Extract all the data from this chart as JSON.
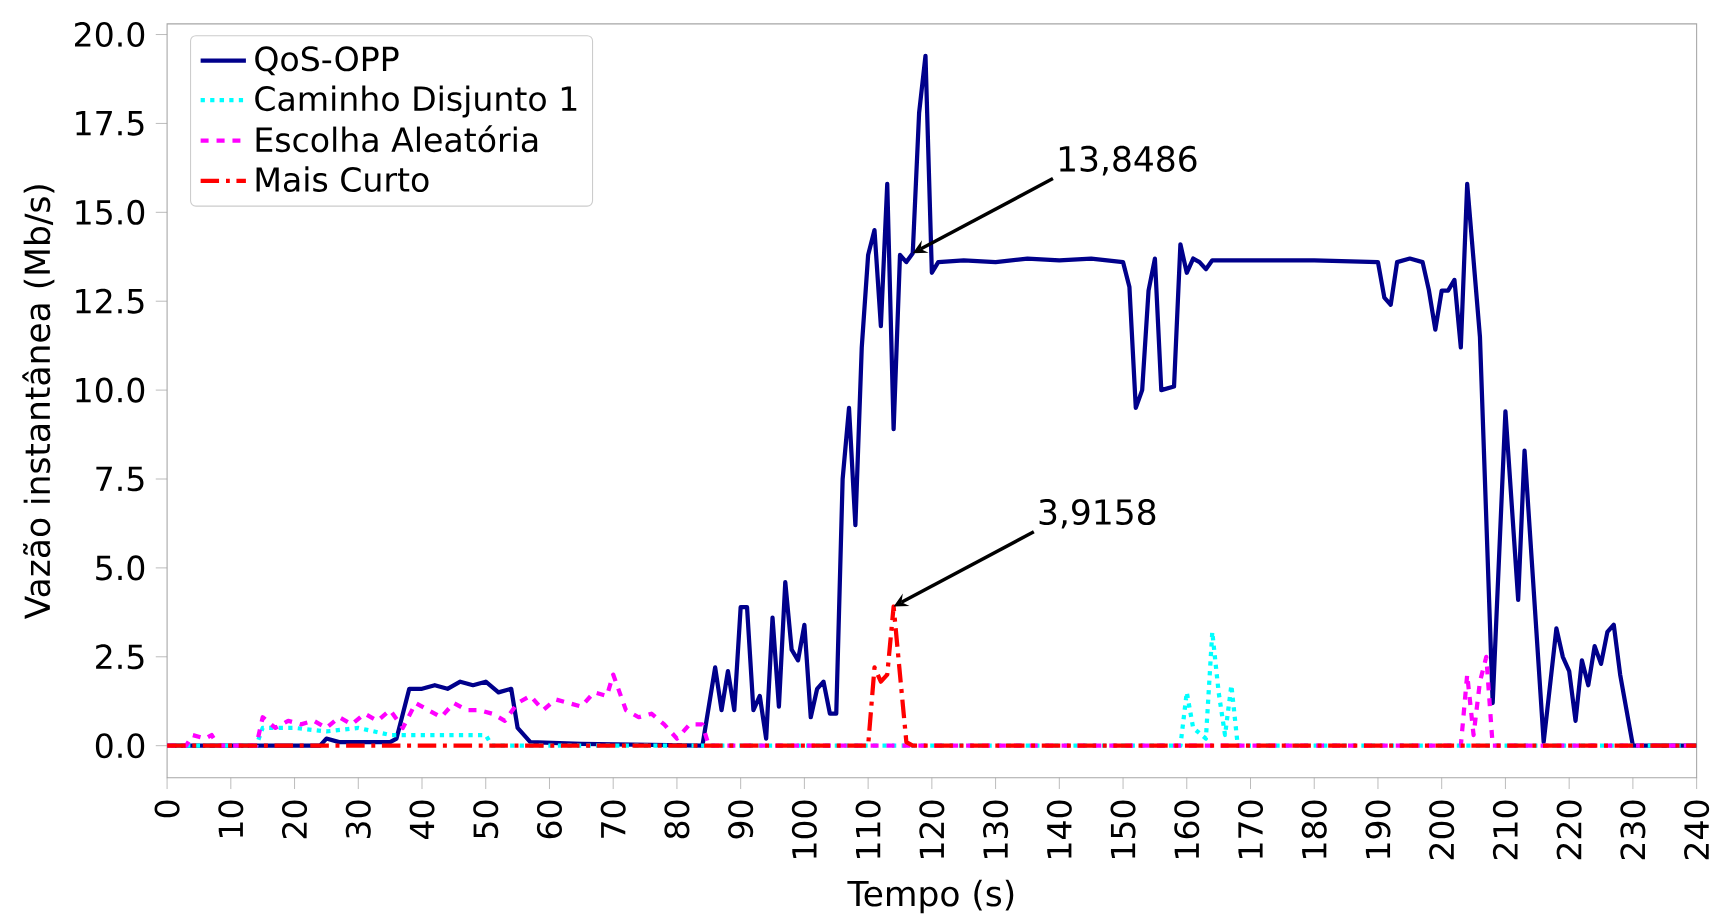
{
  "chart_data": {
    "type": "line",
    "xlabel": "Tempo (s)",
    "ylabel": "Vazão instantânea (Mb/s)",
    "xlim": [
      0,
      240
    ],
    "ylim": [
      -0.9,
      20.3
    ],
    "xticks": [
      0,
      10,
      20,
      30,
      40,
      50,
      60,
      70,
      80,
      90,
      100,
      110,
      120,
      130,
      140,
      150,
      160,
      170,
      180,
      190,
      200,
      210,
      220,
      230,
      240
    ],
    "yticks": [
      {
        "value": 0,
        "label": "0.0"
      },
      {
        "value": 2.5,
        "label": "2.5"
      },
      {
        "value": 5,
        "label": "5.0"
      },
      {
        "value": 7.5,
        "label": "7.5"
      },
      {
        "value": 10,
        "label": "10.0"
      },
      {
        "value": 12.5,
        "label": "12.5"
      },
      {
        "value": 15,
        "label": "15.0"
      },
      {
        "value": 17.5,
        "label": "17.5"
      },
      {
        "value": 20,
        "label": "20.0"
      }
    ],
    "grid": false,
    "legend": "top left",
    "marker": "none",
    "series": [
      {
        "name": "QoS-OPP",
        "color": "#00008b",
        "line_style": "solid",
        "x": [
          0,
          24,
          25,
          27,
          35,
          36,
          38,
          40,
          42,
          44,
          46,
          48,
          50,
          52,
          54,
          55,
          57,
          65,
          84,
          86,
          87,
          88,
          89,
          90,
          91,
          92,
          93,
          94,
          95,
          96,
          97,
          98,
          99,
          100,
          101,
          102,
          103,
          104,
          105,
          106,
          107,
          108,
          109,
          110,
          111,
          112,
          113,
          114,
          115,
          116,
          117,
          118,
          119,
          120,
          121,
          125,
          130,
          135,
          140,
          145,
          150,
          151,
          152,
          153,
          154,
          155,
          156,
          158,
          159,
          160,
          161,
          162,
          163,
          164,
          170,
          180,
          190,
          191,
          192,
          193,
          195,
          197,
          198,
          199,
          200,
          201,
          202,
          203,
          204,
          206,
          208,
          210,
          212,
          213,
          216,
          218,
          219,
          220,
          221,
          222,
          223,
          224,
          225,
          226,
          227,
          228,
          230,
          240
        ],
        "values": [
          0,
          0,
          0.2,
          0.1,
          0.1,
          0.2,
          1.6,
          1.6,
          1.7,
          1.6,
          1.8,
          1.7,
          1.8,
          1.5,
          1.6,
          0.5,
          0.1,
          0.05,
          0,
          2.2,
          1.0,
          2.1,
          1.0,
          3.9,
          3.9,
          1.0,
          1.4,
          0.2,
          3.6,
          1.1,
          4.6,
          2.7,
          2.4,
          3.4,
          0.8,
          1.6,
          1.8,
          0.9,
          0.9,
          7.5,
          9.5,
          6.2,
          11.2,
          13.8,
          14.5,
          11.8,
          15.8,
          8.9,
          13.8,
          13.6,
          13.8486,
          17.8,
          19.4,
          13.3,
          13.6,
          13.65,
          13.6,
          13.7,
          13.65,
          13.7,
          13.6,
          12.9,
          9.5,
          10.0,
          12.8,
          13.7,
          10.0,
          10.1,
          14.1,
          13.3,
          13.7,
          13.6,
          13.4,
          13.65,
          13.65,
          13.65,
          13.6,
          12.6,
          12.4,
          13.6,
          13.7,
          13.6,
          12.8,
          11.7,
          12.8,
          12.8,
          13.1,
          11.2,
          15.8,
          11.5,
          1.2,
          9.4,
          4.1,
          8.3,
          0.1,
          3.3,
          2.5,
          2.1,
          0.7,
          2.4,
          1.7,
          2.8,
          2.3,
          3.2,
          3.4,
          2.0,
          0,
          0
        ]
      },
      {
        "name": "Caminho Disjunto 1",
        "color": "#00ffff",
        "line_style": "dotted",
        "x": [
          0,
          14,
          15,
          20,
          25,
          30,
          35,
          40,
          45,
          50,
          51,
          159,
          160,
          161,
          163,
          164,
          165,
          166,
          167,
          168,
          240
        ],
        "values": [
          0,
          0,
          0.5,
          0.5,
          0.4,
          0.5,
          0.3,
          0.3,
          0.3,
          0.3,
          0,
          0,
          1.5,
          0.5,
          0.2,
          3.2,
          1.5,
          0.3,
          1.7,
          0,
          0
        ]
      },
      {
        "name": "Escolha Aleatória",
        "color": "#ff00ff",
        "line_style": "dashed",
        "x": [
          0,
          3,
          4,
          6,
          7,
          8,
          14,
          15,
          17,
          19,
          21,
          23,
          25,
          27,
          29,
          31,
          33,
          35,
          37,
          39,
          41,
          43,
          45,
          47,
          49,
          51,
          53,
          55,
          57,
          59,
          61,
          63,
          65,
          67,
          69,
          70,
          72,
          74,
          76,
          78,
          80,
          82,
          84,
          85,
          203,
          204,
          205,
          206,
          207,
          208,
          240
        ],
        "values": [
          0,
          0,
          0.3,
          0.2,
          0.3,
          0,
          0,
          0.8,
          0.5,
          0.7,
          0.6,
          0.7,
          0.5,
          0.8,
          0.6,
          0.9,
          0.7,
          1.0,
          0.5,
          1.2,
          1.0,
          0.8,
          1.2,
          1.0,
          1.0,
          0.9,
          0.7,
          1.2,
          1.4,
          1.0,
          1.3,
          1.2,
          1.1,
          1.5,
          1.4,
          2.0,
          1.0,
          0.8,
          0.9,
          0.6,
          0.2,
          0.6,
          0.6,
          0,
          0,
          2.0,
          0.3,
          1.8,
          2.5,
          0,
          0
        ]
      },
      {
        "name": "Mais Curto",
        "color": "#ff0000",
        "line_style": "dashdot",
        "x": [
          0,
          110,
          111,
          112,
          113,
          114,
          115,
          116,
          117,
          240
        ],
        "values": [
          0,
          0,
          2.2,
          1.8,
          2.0,
          3.9158,
          2.0,
          0.1,
          0,
          0
        ]
      }
    ],
    "annotations": [
      {
        "text": "13,8486",
        "x": 117,
        "y": 13.8486
      },
      {
        "text": "3,9158",
        "x": 114,
        "y": 3.9158
      }
    ]
  }
}
